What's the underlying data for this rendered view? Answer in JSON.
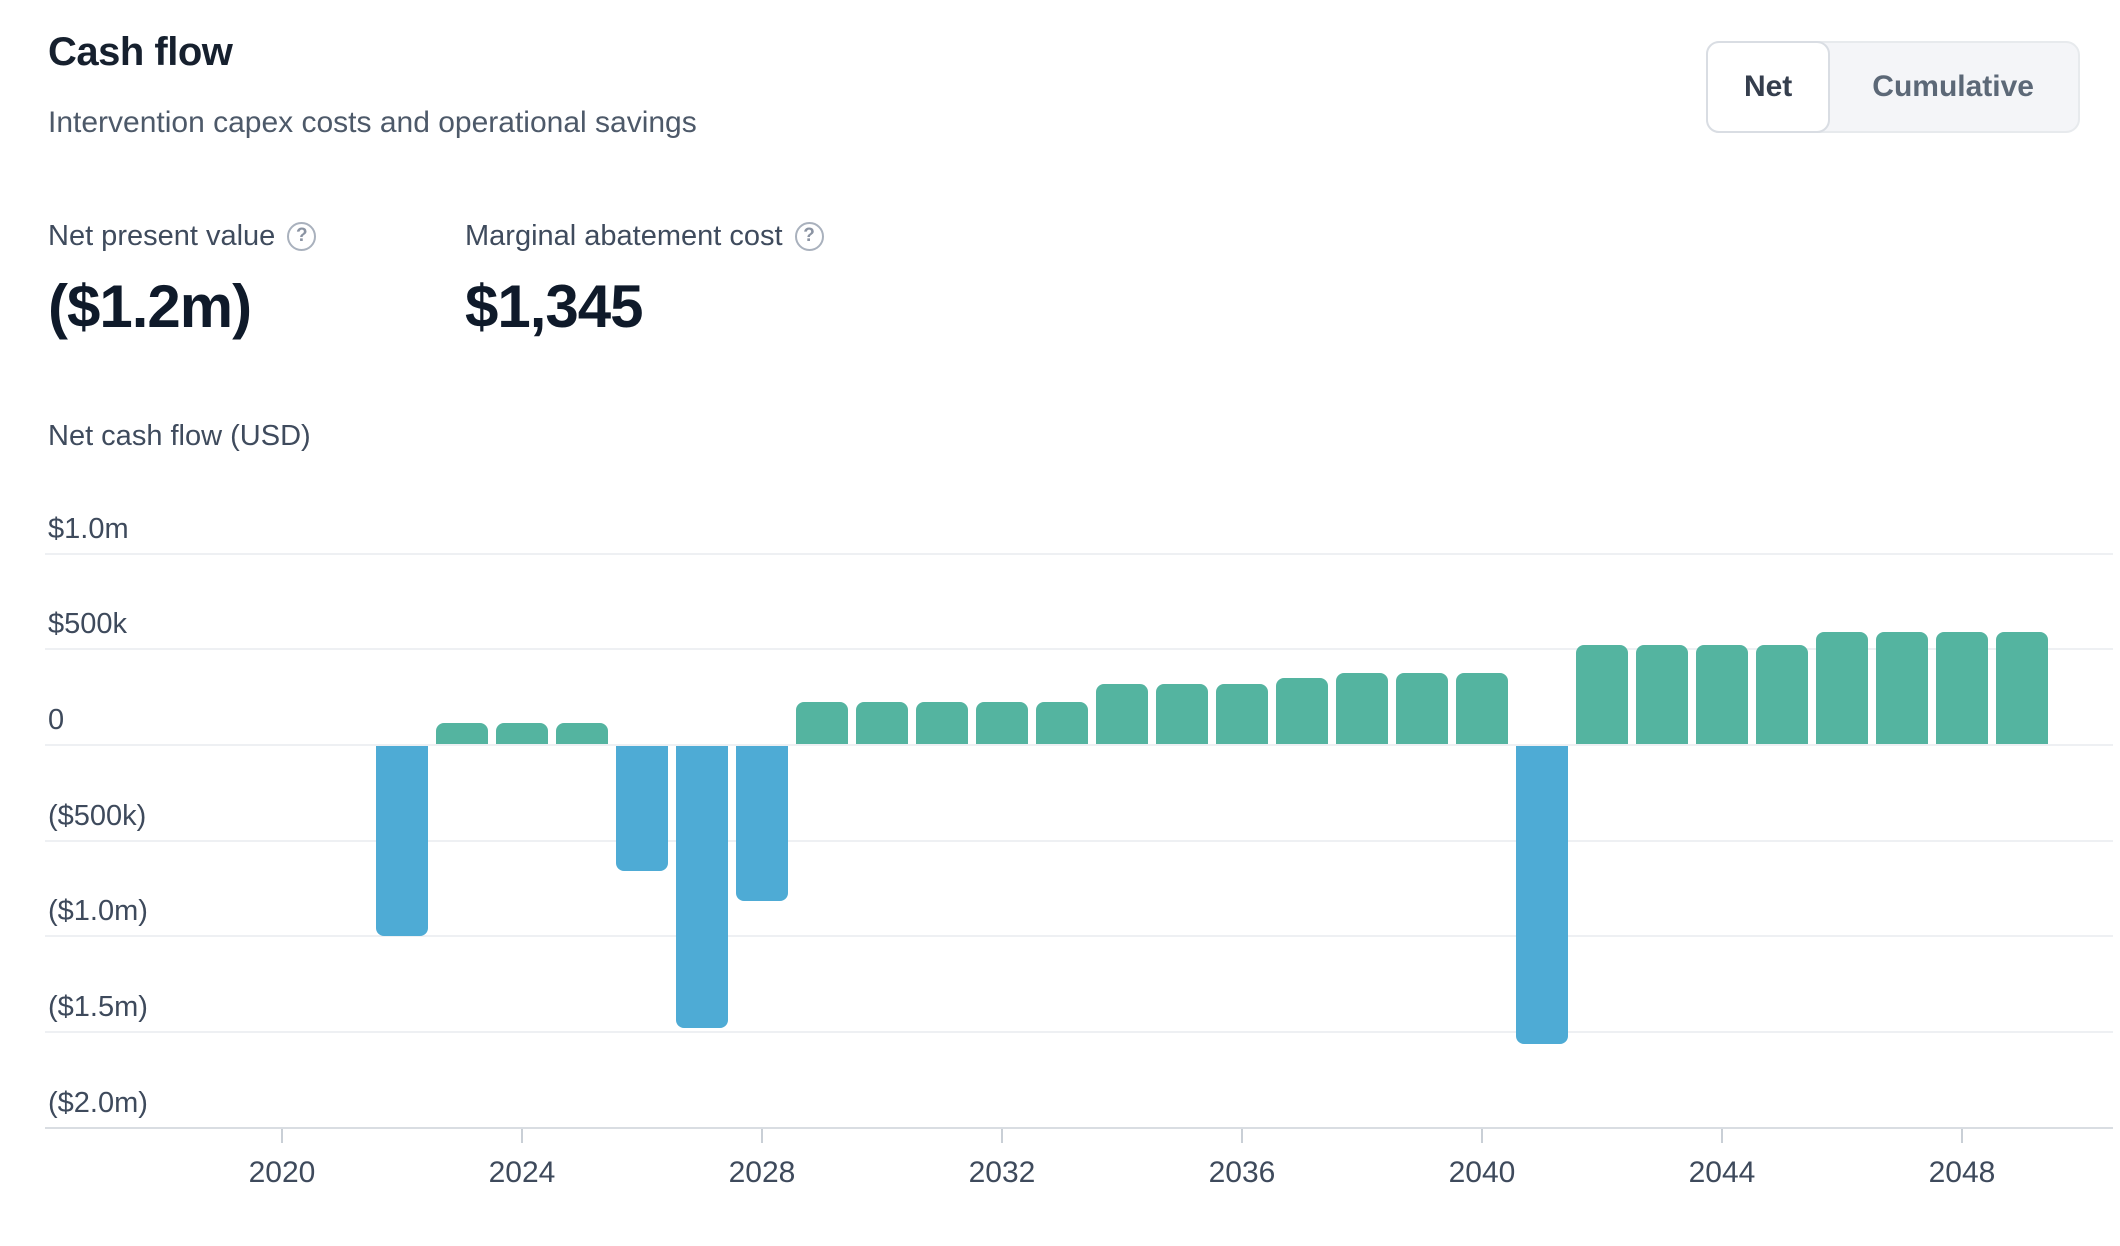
{
  "header": {
    "title": "Cash flow",
    "subtitle": "Intervention capex costs and operational savings",
    "toggle": {
      "options": [
        {
          "label": "Net",
          "selected": true
        },
        {
          "label": "Cumulative",
          "selected": false
        }
      ]
    }
  },
  "stats": [
    {
      "label": "Net present value",
      "value": "($1.2m)",
      "help_icon": "question-mark-circle"
    },
    {
      "label": "Marginal abatement cost",
      "value": "$1,345",
      "help_icon": "question-mark-circle"
    }
  ],
  "chart_data": {
    "type": "bar",
    "title": "Net cash flow (USD)",
    "xlabel": "",
    "ylabel": "Net cash flow (USD)",
    "ylim": [
      -2000000,
      1000000
    ],
    "xlim": [
      2019,
      2051
    ],
    "grid": "horizontal",
    "legend": "none",
    "colors": {
      "positive": "#54B4A0",
      "negative": "#4EABD5"
    },
    "y_ticks": [
      {
        "label": "$1.0m",
        "value": 1000000
      },
      {
        "label": "$500k",
        "value": 500000
      },
      {
        "label": "0",
        "value": 0
      },
      {
        "label": "($500k)",
        "value": -500000
      },
      {
        "label": "($1.0m)",
        "value": -1000000
      },
      {
        "label": "($1.5m)",
        "value": -1500000
      },
      {
        "label": "($2.0m)",
        "value": -2000000
      }
    ],
    "x_ticks": [
      2020,
      2024,
      2028,
      2032,
      2036,
      2040,
      2044,
      2048
    ],
    "series": [
      {
        "year": 2022,
        "value": -1000000
      },
      {
        "year": 2023,
        "value": 115000
      },
      {
        "year": 2024,
        "value": 115000
      },
      {
        "year": 2025,
        "value": 115000
      },
      {
        "year": 2026,
        "value": -660000
      },
      {
        "year": 2027,
        "value": -1480000
      },
      {
        "year": 2028,
        "value": -815000
      },
      {
        "year": 2029,
        "value": 225000
      },
      {
        "year": 2030,
        "value": 225000
      },
      {
        "year": 2031,
        "value": 225000
      },
      {
        "year": 2032,
        "value": 225000
      },
      {
        "year": 2033,
        "value": 225000
      },
      {
        "year": 2034,
        "value": 320000
      },
      {
        "year": 2035,
        "value": 320000
      },
      {
        "year": 2036,
        "value": 320000
      },
      {
        "year": 2037,
        "value": 350000
      },
      {
        "year": 2038,
        "value": 375000
      },
      {
        "year": 2039,
        "value": 375000
      },
      {
        "year": 2040,
        "value": 375000
      },
      {
        "year": 2041,
        "value": -1560000
      },
      {
        "year": 2042,
        "value": 525000
      },
      {
        "year": 2043,
        "value": 525000
      },
      {
        "year": 2044,
        "value": 525000
      },
      {
        "year": 2045,
        "value": 525000
      },
      {
        "year": 2046,
        "value": 590000
      },
      {
        "year": 2047,
        "value": 590000
      },
      {
        "year": 2048,
        "value": 590000
      },
      {
        "year": 2049,
        "value": 590000
      }
    ]
  }
}
